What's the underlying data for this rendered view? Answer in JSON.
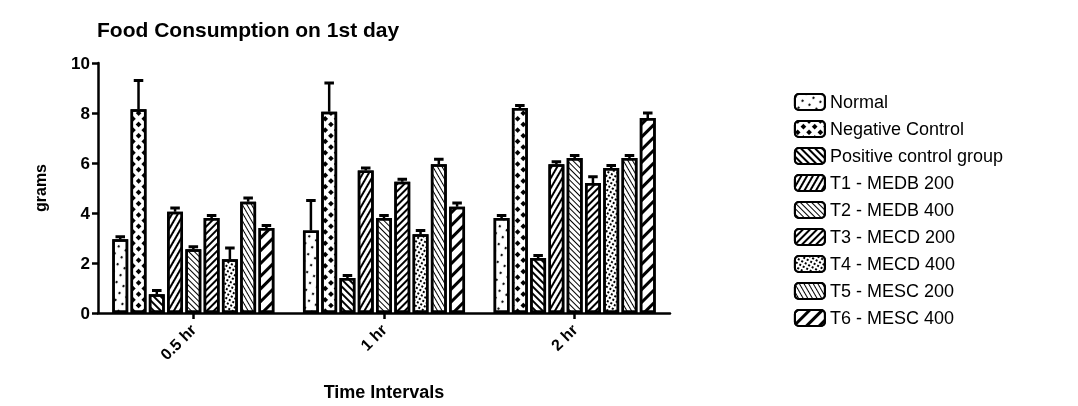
{
  "chart_data": {
    "type": "bar",
    "title": "Food Consumption on 1st day",
    "xlabel": "Time Intervals",
    "ylabel": "grams",
    "categories": [
      "0.5 hr",
      "1 hr",
      "2 hr"
    ],
    "ylim": [
      0,
      10
    ],
    "yticks": [
      0,
      2,
      4,
      6,
      8,
      10
    ],
    "grid": false,
    "legend": "right",
    "series": [
      {
        "name": "Normal",
        "color": "#000000",
        "values": [
          2.95,
          3.3,
          3.8
        ],
        "errors": [
          [
            2.95,
            3.05
          ],
          [
            3.3,
            4.5
          ],
          [
            3.8,
            3.9
          ]
        ]
      },
      {
        "name": "Negative Control",
        "color": "#000000",
        "values": [
          8.15,
          8.05,
          8.2
        ],
        "errors": [
          [
            8.15,
            9.3
          ],
          [
            8.05,
            9.2
          ],
          [
            8.2,
            8.3
          ]
        ]
      },
      {
        "name": "Positive control group",
        "color": "#000000",
        "values": [
          0.75,
          1.4,
          2.2
        ],
        "errors": [
          [
            0.75,
            0.9
          ],
          [
            1.4,
            1.5
          ],
          [
            2.2,
            2.3
          ]
        ]
      },
      {
        "name": "T1 - MEDB 200",
        "color": "#000000",
        "values": [
          4.05,
          5.7,
          5.95
        ],
        "errors": [
          [
            4.05,
            4.2
          ],
          [
            5.7,
            5.8
          ],
          [
            5.95,
            6.05
          ]
        ]
      },
      {
        "name": "T2 - MEDB 400",
        "color": "#000000",
        "values": [
          2.55,
          3.8,
          6.2
        ],
        "errors": [
          [
            2.55,
            2.65
          ],
          [
            3.8,
            3.9
          ],
          [
            6.2,
            6.3
          ]
        ]
      },
      {
        "name": "T3 - MECD 200",
        "color": "#000000",
        "values": [
          3.8,
          5.25,
          5.2
        ],
        "errors": [
          [
            3.8,
            3.9
          ],
          [
            5.25,
            5.35
          ],
          [
            5.2,
            5.45
          ]
        ]
      },
      {
        "name": "T4 - MECD 400",
        "color": "#000000",
        "values": [
          2.15,
          3.15,
          5.8
        ],
        "errors": [
          [
            2.15,
            2.6
          ],
          [
            3.15,
            3.3
          ],
          [
            5.8,
            5.9
          ]
        ]
      },
      {
        "name": "T5 - MESC 200",
        "color": "#000000",
        "values": [
          4.45,
          5.95,
          6.2
        ],
        "errors": [
          [
            4.45,
            4.6
          ],
          [
            5.95,
            6.15
          ],
          [
            6.2,
            6.3
          ]
        ]
      },
      {
        "name": "T6 - MESC 400",
        "color": "#000000",
        "values": [
          3.4,
          4.25,
          7.8
        ],
        "errors": [
          [
            3.4,
            3.5
          ],
          [
            4.25,
            4.4
          ],
          [
            7.8,
            8.0
          ]
        ]
      }
    ]
  }
}
